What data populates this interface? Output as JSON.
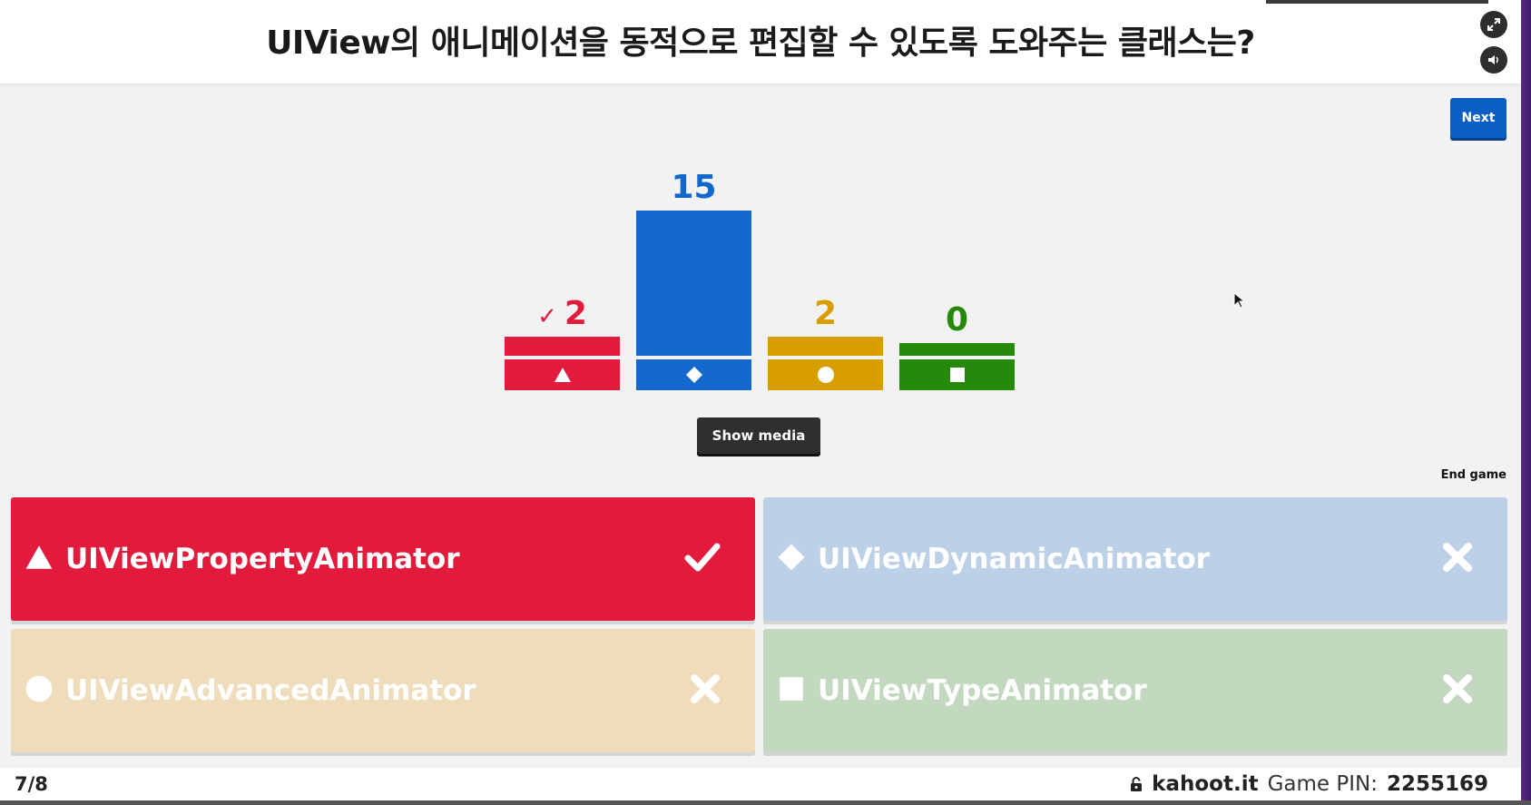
{
  "question": "UIView의 애니메이션을 동적으로 편집할 수 있도록 도와주는 클래스는?",
  "buttons": {
    "next": "Next",
    "show_media": "Show media",
    "end_game": "End game"
  },
  "icons": {
    "fullscreen": "fullscreen-icon",
    "sound": "sound-icon",
    "lock": "lock-icon"
  },
  "colors": {
    "red": "#e21b3c",
    "blue": "#1368ce",
    "yellow": "#d89e00",
    "green": "#26890c"
  },
  "chart_data": {
    "type": "bar",
    "categories": [
      "UIViewPropertyAnimator",
      "UIViewDynamicAnimator",
      "UIViewAdvancedAnimator",
      "UIViewTypeAnimator"
    ],
    "values": [
      2,
      15,
      2,
      0
    ],
    "correct_index": 0
  },
  "answers": [
    {
      "text": "UIViewPropertyAnimator",
      "shape": "triangle",
      "correct": true,
      "mark": "✔"
    },
    {
      "text": "UIViewDynamicAnimator",
      "shape": "diamond",
      "correct": false,
      "mark": "✖"
    },
    {
      "text": "UIViewAdvancedAnimator",
      "shape": "circle",
      "correct": false,
      "mark": "✖"
    },
    {
      "text": "UIViewTypeAnimator",
      "shape": "square",
      "correct": false,
      "mark": "✖"
    }
  ],
  "footer": {
    "progress": "7/8",
    "site": "kahoot.it",
    "pin_label": "Game PIN:",
    "pin_value": "2255169"
  }
}
